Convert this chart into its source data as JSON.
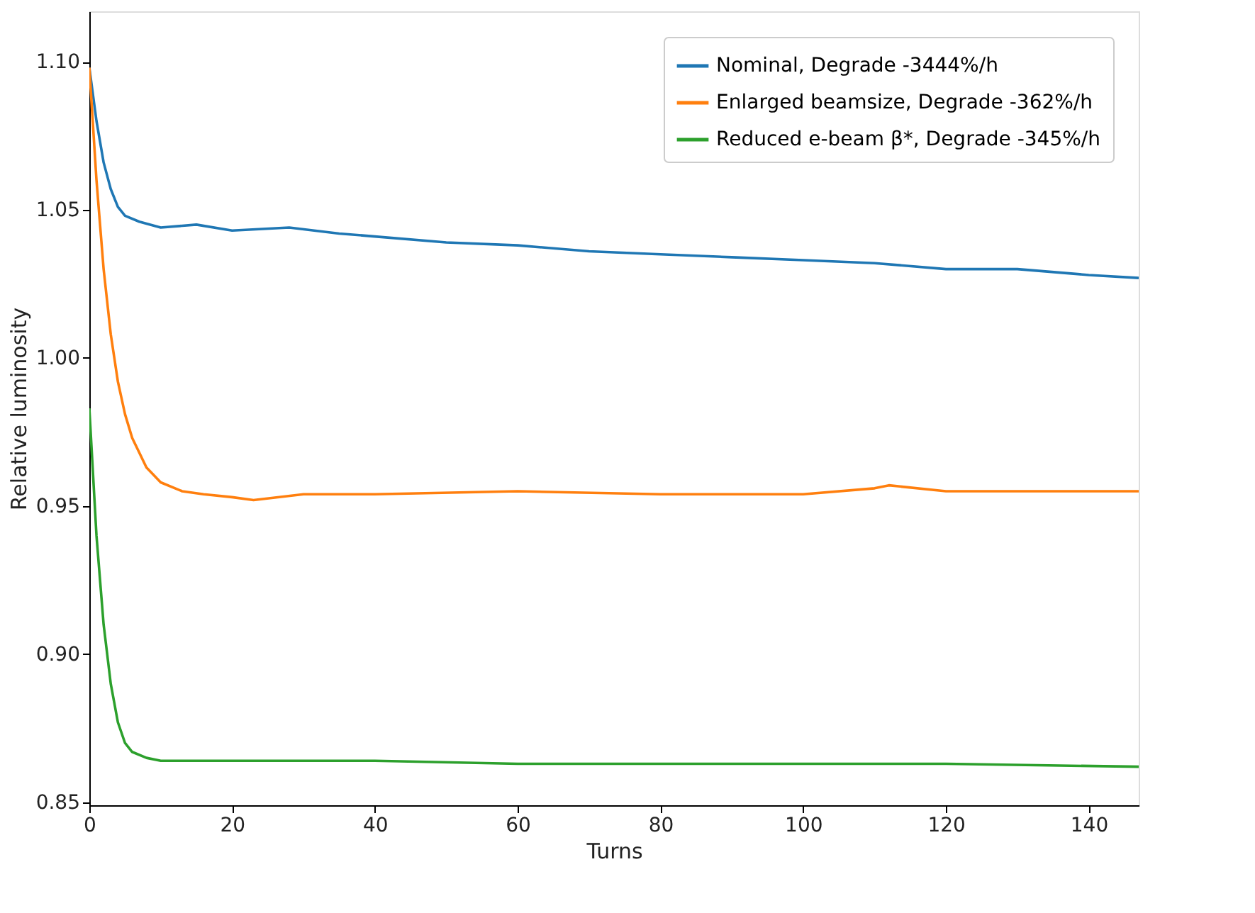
{
  "chart_data": {
    "type": "line",
    "xlabel": "Turns",
    "ylabel": "Relative luminosity",
    "xlim": [
      0,
      147
    ],
    "xticks": [
      0,
      20,
      40,
      60,
      80,
      100,
      120,
      140
    ],
    "ylim": [
      0.849,
      1.117
    ],
    "yticks": [
      0.85,
      {
        "value": 0.9,
        "label": "0.90"
      },
      0.95,
      {
        "value": 1,
        "label": "1.00"
      },
      1.05,
      {
        "value": 1.1,
        "label": "1.10"
      }
    ],
    "grid": false,
    "legend": "top right",
    "marker": "none",
    "line_style": "solid",
    "series": [
      {
        "name": "Nominal, Degrade -3444%/h",
        "color": "#1f77b4",
        "x": [
          0,
          1,
          2,
          3,
          4,
          5,
          7,
          10,
          15,
          20,
          28,
          35,
          40,
          50,
          60,
          70,
          80,
          90,
          100,
          110,
          120,
          130,
          140,
          147
        ],
        "values": [
          1.098,
          1.08,
          1.066,
          1.057,
          1.051,
          1.048,
          1.046,
          1.044,
          1.045,
          1.043,
          1.044,
          1.042,
          1.041,
          1.039,
          1.038,
          1.036,
          1.035,
          1.034,
          1.033,
          1.032,
          1.03,
          1.03,
          1.028,
          1.027
        ]
      },
      {
        "name": "Enlarged beamsize, Degrade -362%/h",
        "color": "#ff7f0e",
        "x": [
          0,
          1,
          2,
          3,
          4,
          5,
          6,
          8,
          10,
          13,
          16,
          20,
          23,
          30,
          40,
          60,
          80,
          100,
          110,
          112,
          120,
          140,
          147
        ],
        "values": [
          1.098,
          1.06,
          1.03,
          1.008,
          0.992,
          0.981,
          0.973,
          0.963,
          0.958,
          0.955,
          0.954,
          0.953,
          0.952,
          0.954,
          0.954,
          0.955,
          0.954,
          0.954,
          0.956,
          0.957,
          0.955,
          0.955,
          0.955
        ]
      },
      {
        "name": "Reduced e-beam β*, Degrade -345%/h",
        "color": "#2ca02c",
        "x": [
          0,
          1,
          2,
          3,
          4,
          5,
          6,
          8,
          10,
          20,
          40,
          60,
          80,
          100,
          120,
          147
        ],
        "values": [
          0.983,
          0.94,
          0.91,
          0.89,
          0.877,
          0.87,
          0.867,
          0.865,
          0.864,
          0.864,
          0.864,
          0.863,
          0.863,
          0.863,
          0.863,
          0.862
        ]
      }
    ]
  }
}
